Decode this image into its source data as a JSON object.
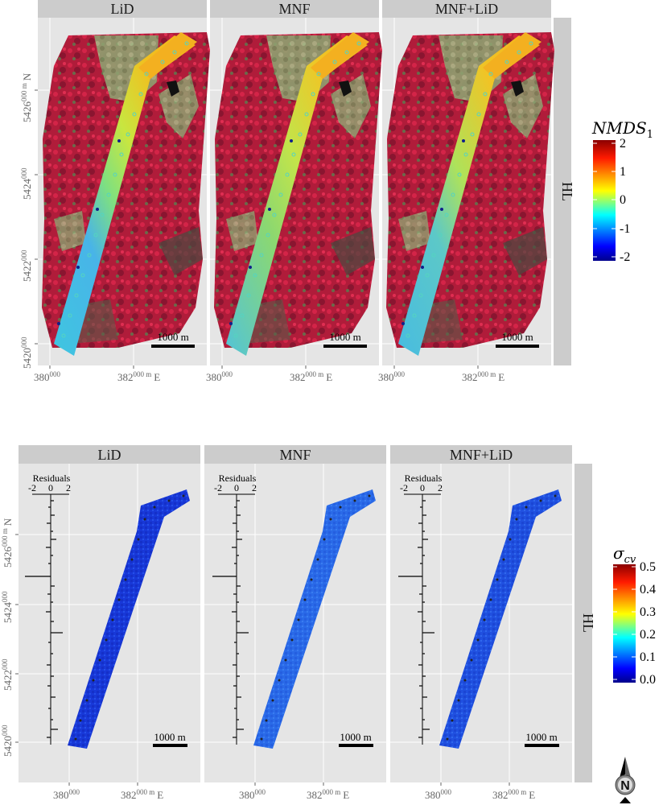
{
  "top_figure": {
    "panels": [
      "LiD",
      "MNF",
      "MNF+LiD"
    ],
    "row_label": "HL",
    "x_ticks": [
      "380",
      "382"
    ],
    "x_tick_sup": [
      "000",
      "000 m"
    ],
    "x_suffix": "E",
    "y_ticks": [
      "5420",
      "5422",
      "5424",
      "5426"
    ],
    "y_tick_sup": [
      "000",
      "000",
      "000",
      "000 m"
    ],
    "y_suffix": "N",
    "scale_bar": "1000 m",
    "legend": {
      "title": "NMDS",
      "title_sub": "1",
      "labels": [
        "2",
        "1",
        "0",
        "-1",
        "-2"
      ],
      "colors": [
        "#8b0000",
        "#ff0000",
        "#ffa500",
        "#ffff00",
        "#7fff7f",
        "#00ffff",
        "#007fff",
        "#0000ff",
        "#00008b"
      ]
    }
  },
  "bottom_figure": {
    "panels": [
      "LiD",
      "MNF",
      "MNF+LiD"
    ],
    "row_label": "HL",
    "x_ticks": [
      "380",
      "382"
    ],
    "x_tick_sup": [
      "000",
      "000 m"
    ],
    "x_suffix": "E",
    "y_ticks": [
      "5420",
      "5422",
      "5424",
      "5426"
    ],
    "y_tick_sup": [
      "000",
      "000",
      "000",
      "000 m"
    ],
    "y_suffix": "N",
    "scale_bar": "1000 m",
    "residuals": {
      "title": "Residuals",
      "ticks": [
        "-2",
        "0",
        "2"
      ]
    },
    "legend": {
      "title": "σ",
      "title_sub": "cv",
      "labels": [
        "0.5",
        "0.4",
        "0.3",
        "0.2",
        "0.1",
        "0.0"
      ],
      "colors": [
        "#8b0000",
        "#ff0000",
        "#ffa500",
        "#ffff00",
        "#7fff7f",
        "#00ffff",
        "#007fff",
        "#0000ff",
        "#00008b"
      ]
    }
  },
  "north_arrow": {
    "label": "N"
  }
}
